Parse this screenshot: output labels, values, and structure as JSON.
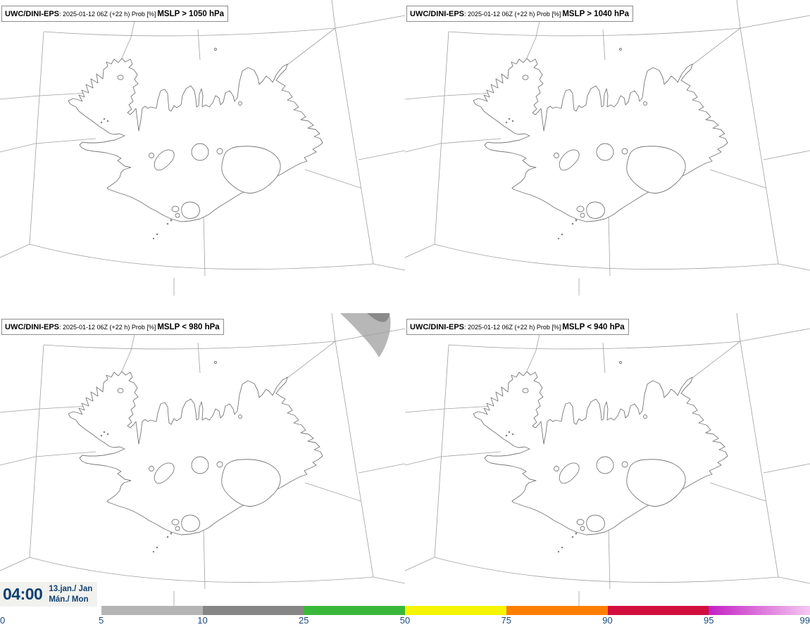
{
  "panels": [
    {
      "product": "UWC/DINI-EPS",
      "meta": ": 2025-01-12 06Z (+22 h) Prob [%]",
      "param": "MSLP > 1050 hPa"
    },
    {
      "product": "UWC/DINI-EPS",
      "meta": ": 2025-01-12 06Z (+22 h) Prob [%]",
      "param": "MSLP > 1040 hPa"
    },
    {
      "product": "UWC/DINI-EPS",
      "meta": ": 2025-01-12 06Z (+22 h) Prob [%]",
      "param": "MSLP < 980 hPa"
    },
    {
      "product": "UWC/DINI-EPS",
      "meta": ": 2025-01-12 06Z (+22 h) Prob [%]",
      "param": "MSLP < 940 hPa"
    }
  ],
  "time_panel": {
    "time": "04:00",
    "date": "13.jan./ Jan",
    "weekday": "Mán./ Mon",
    "text_color": "#0f416f",
    "bg_color": "#f1f1ee"
  },
  "colorbar": {
    "unit": "%",
    "labels": [
      "0",
      "5",
      "10",
      "25",
      "50",
      "75",
      "90",
      "95",
      "99"
    ],
    "label_color": "#1c4a7d",
    "segments": [
      {
        "from": "5",
        "to": "10",
        "color": "#b5b5b5"
      },
      {
        "from": "10",
        "to": "25",
        "color": "#868686"
      },
      {
        "from": "25",
        "to": "50",
        "color": "#3ab83a"
      },
      {
        "from": "50",
        "to": "75",
        "color": "#f5f502"
      },
      {
        "from": "75",
        "to": "90",
        "color": "#ff7e00"
      },
      {
        "from": "90",
        "to": "95",
        "color": "#d20f3d"
      },
      {
        "from": "95",
        "to": "99",
        "color_start": "#c41fc4",
        "color_end": "#f4c9f1"
      }
    ]
  },
  "probability_shading": {
    "panel3_blob": {
      "light_color": "#b7b7b7",
      "dark_color": "#8a8a8a"
    }
  }
}
